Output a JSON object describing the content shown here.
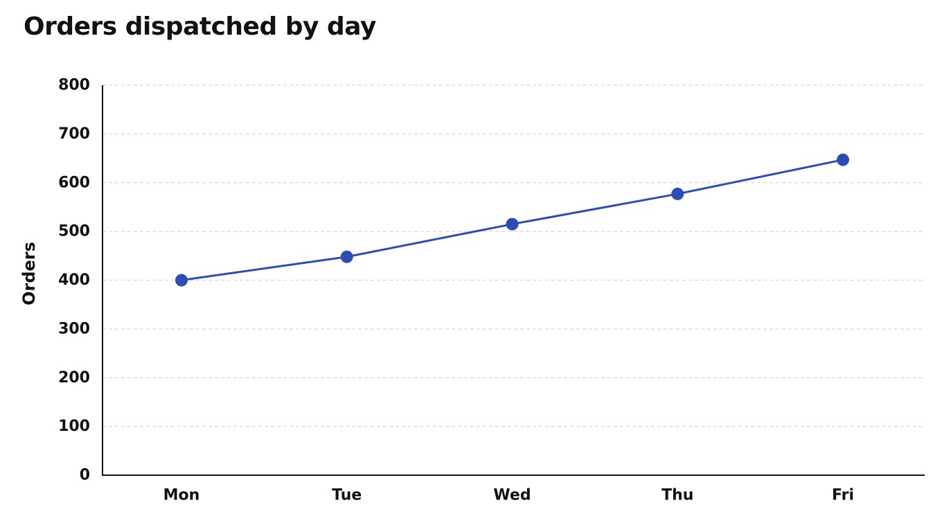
{
  "chart_data": {
    "type": "line",
    "title": "Orders dispatched by day",
    "xlabel": "",
    "ylabel": "Orders",
    "categories": [
      "Mon",
      "Tue",
      "Wed",
      "Thu",
      "Fri"
    ],
    "series": [
      {
        "values": [
          400,
          448,
          515,
          577,
          647
        ]
      }
    ],
    "ylim": [
      0,
      800
    ],
    "yticks": [
      0,
      100,
      200,
      300,
      400,
      500,
      600,
      700,
      800
    ],
    "grid": true,
    "legend": "none",
    "colors": {
      "line": "#2a4eb6",
      "grid": "#d6d6d6",
      "axis": "#111111"
    }
  }
}
